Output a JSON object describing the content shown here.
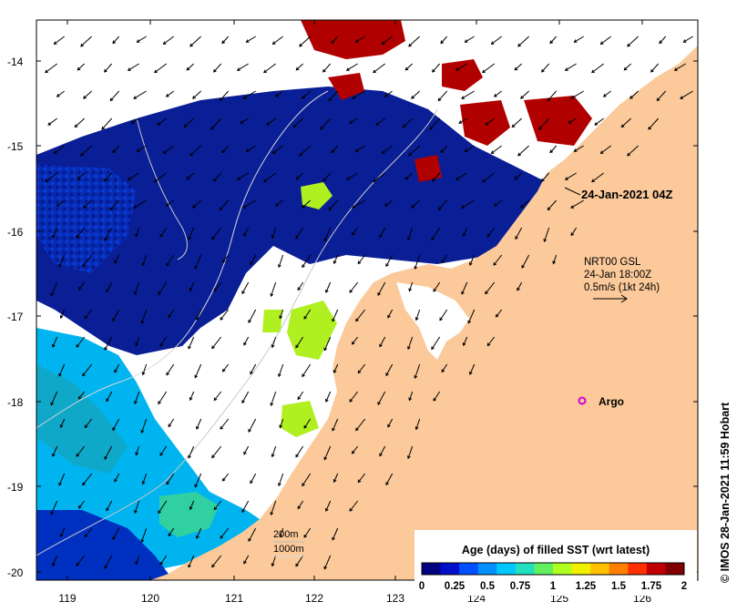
{
  "map": {
    "annotation_timestamp": "24-Jan-2021 04Z",
    "current_info": {
      "line1": "NRT00 GSL",
      "line2": "24-Jan 18:00Z",
      "line3": "0.5m/s (1kt 24h)"
    },
    "argo_label": "Argo",
    "depth_labels": [
      "200m",
      "1000m"
    ],
    "credit": "© IMOS 28-Jan-2021 11:59 Hobart",
    "colors": {
      "land": "#fbc99a",
      "no_data": "#ffffff",
      "argo_marker": "#d400d4"
    },
    "axis": {
      "x_ticks": [
        "119",
        "120",
        "121",
        "122",
        "123",
        "124",
        "125",
        "126"
      ],
      "y_ticks": [
        "-14",
        "-15",
        "-16",
        "-17",
        "-18",
        "-19",
        "-20"
      ]
    }
  },
  "legend": {
    "title": "Age (days) of filled SST (wrt latest)",
    "tick_labels": [
      "0",
      "0.25",
      "0.5",
      "0.75",
      "1",
      "1.25",
      "1.5",
      "1.75",
      "2"
    ],
    "colors": [
      "#000080",
      "#0010c8",
      "#0050ff",
      "#0090ff",
      "#00c8ff",
      "#20e0c0",
      "#60f060",
      "#b0ff20",
      "#f0f000",
      "#ffc000",
      "#ff8000",
      "#ff3000",
      "#c00000",
      "#800000"
    ]
  }
}
